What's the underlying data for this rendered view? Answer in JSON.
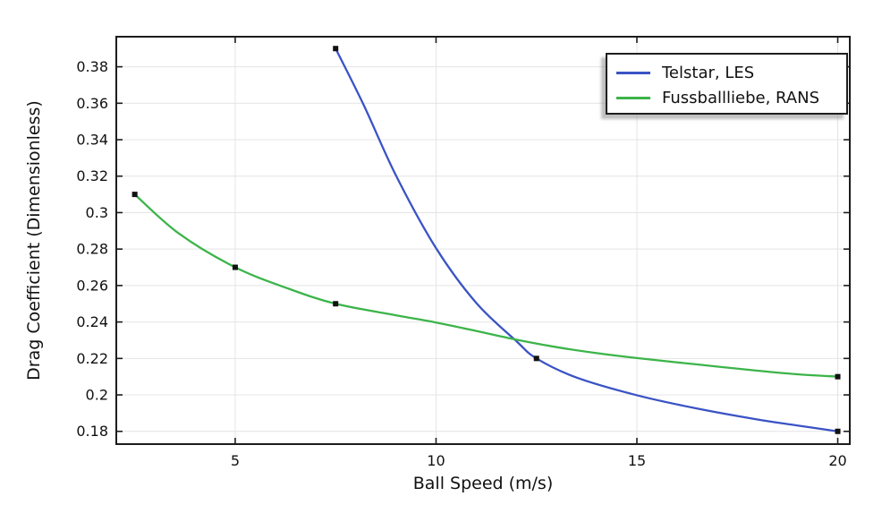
{
  "figure": {
    "background": "#ffffff",
    "text_color": "#111111",
    "frame_color": "#1c1c1c",
    "grid_color": "#e4e4e4"
  },
  "chart_data": {
    "type": "line",
    "title": "",
    "xlabel": "Ball Speed (m/s)",
    "ylabel": "Drag Coefficient (Dimensionless)",
    "xlim": [
      2.04,
      20.3
    ],
    "ylim": [
      0.173,
      0.3965
    ],
    "xticks": [
      5,
      10,
      15,
      20
    ],
    "xtick_labels": [
      "5",
      "10",
      "15",
      "20"
    ],
    "yticks": [
      0.18,
      0.2,
      0.22,
      0.24,
      0.26,
      0.28,
      0.3,
      0.32,
      0.34,
      0.36,
      0.38
    ],
    "ytick_labels": [
      "0.18",
      "0.2",
      "0.22",
      "0.24",
      "0.26",
      "0.28",
      "0.3",
      "0.32",
      "0.34",
      "0.36",
      "0.38"
    ],
    "grid": true,
    "legend_position": "top-right",
    "marker_size": 6,
    "line_width": 2.3,
    "series": [
      {
        "name": "Telstar, LES",
        "color": "#3a53c5",
        "marker": "square",
        "marker_color": "#111111",
        "data_points": [
          [
            7.5,
            0.39
          ],
          [
            12.5,
            0.22
          ],
          [
            20,
            0.18
          ]
        ],
        "curve_samples": [
          [
            7.5,
            0.39
          ],
          [
            8.2,
            0.359
          ],
          [
            9,
            0.3205
          ],
          [
            10,
            0.2805
          ],
          [
            11,
            0.2505
          ],
          [
            12,
            0.2295
          ],
          [
            12.5,
            0.22
          ],
          [
            13.5,
            0.2095
          ],
          [
            15,
            0.1998
          ],
          [
            16.5,
            0.1925
          ],
          [
            18,
            0.1865
          ],
          [
            19,
            0.1832
          ],
          [
            20,
            0.18
          ]
        ]
      },
      {
        "name": "Fussballliebe, RANS",
        "color": "#3cb44a",
        "marker": "square",
        "marker_color": "#111111",
        "data_points": [
          [
            2.5,
            0.31
          ],
          [
            5,
            0.27
          ],
          [
            7.5,
            0.25
          ],
          [
            20,
            0.21
          ]
        ],
        "curve_samples": [
          [
            2.5,
            0.31
          ],
          [
            3.6,
            0.2885
          ],
          [
            5,
            0.27
          ],
          [
            6.3,
            0.2585
          ],
          [
            7.5,
            0.25
          ],
          [
            9,
            0.2437
          ],
          [
            10,
            0.2397
          ],
          [
            11,
            0.2351
          ],
          [
            12,
            0.2303
          ],
          [
            13,
            0.2262
          ],
          [
            14,
            0.2229
          ],
          [
            15,
            0.2202
          ],
          [
            16.5,
            0.2167
          ],
          [
            18,
            0.2133
          ],
          [
            19,
            0.2113
          ],
          [
            20,
            0.21
          ]
        ]
      }
    ]
  }
}
